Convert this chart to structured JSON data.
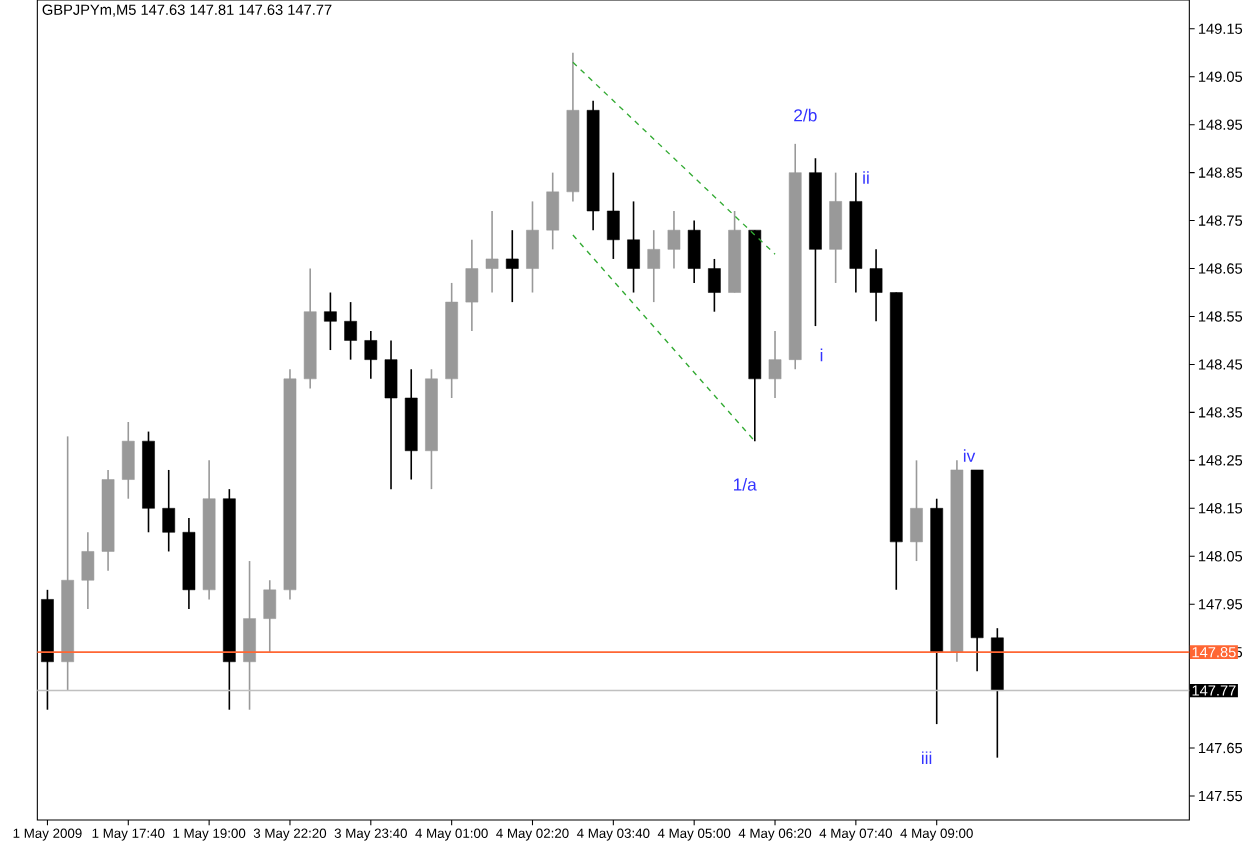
{
  "chart_data": {
    "type": "candlestick",
    "title": "GBPJPYm,M5  147.63 147.81 147.63 147.77",
    "categories": [
      "1 May 2009",
      null,
      null,
      null,
      "1 May 17:40",
      null,
      null,
      null,
      "1 May 19:00",
      null,
      null,
      null,
      "3 May 22:20",
      null,
      null,
      null,
      "3 May 23:40",
      null,
      null,
      null,
      "4 May 01:00",
      null,
      null,
      null,
      "4 May 02:20",
      null,
      null,
      null,
      "4 May 03:40",
      null,
      null,
      null,
      "4 May 05:00",
      null,
      null,
      null,
      "4 May 06:20",
      null,
      null,
      null,
      "4 May 07:40",
      null,
      null,
      null,
      "4 May 09:00",
      null,
      null,
      null,
      null,
      null,
      null,
      null,
      null,
      null,
      null,
      null,
      null
    ],
    "ohlc": [
      [
        147.96,
        147.98,
        147.73,
        147.83
      ],
      [
        147.83,
        148.3,
        147.77,
        148.0
      ],
      [
        148.0,
        148.1,
        147.94,
        148.06
      ],
      [
        148.06,
        148.23,
        148.02,
        148.21
      ],
      [
        148.21,
        148.33,
        148.17,
        148.29
      ],
      [
        148.29,
        148.31,
        148.1,
        148.15
      ],
      [
        148.15,
        148.23,
        148.06,
        148.1
      ],
      [
        148.1,
        148.13,
        147.94,
        147.98
      ],
      [
        147.98,
        148.25,
        147.96,
        148.17
      ],
      [
        148.17,
        148.19,
        147.73,
        147.83
      ],
      [
        147.83,
        148.04,
        147.73,
        147.92
      ],
      [
        147.92,
        148.0,
        147.85,
        147.98
      ],
      [
        147.98,
        148.44,
        147.96,
        148.42
      ],
      [
        148.42,
        148.65,
        148.4,
        148.56
      ],
      [
        148.56,
        148.6,
        148.48,
        148.54
      ],
      [
        148.54,
        148.58,
        148.46,
        148.5
      ],
      [
        148.5,
        148.52,
        148.42,
        148.46
      ],
      [
        148.46,
        148.5,
        148.19,
        148.38
      ],
      [
        148.38,
        148.44,
        148.21,
        148.27
      ],
      [
        148.27,
        148.44,
        148.19,
        148.42
      ],
      [
        148.42,
        148.62,
        148.38,
        148.58
      ],
      [
        148.58,
        148.71,
        148.52,
        148.65
      ],
      [
        148.65,
        148.77,
        148.6,
        148.67
      ],
      [
        148.67,
        148.73,
        148.58,
        148.65
      ],
      [
        148.65,
        148.79,
        148.6,
        148.73
      ],
      [
        148.73,
        148.85,
        148.69,
        148.81
      ],
      [
        148.81,
        149.1,
        148.79,
        148.98
      ],
      [
        148.98,
        149.0,
        148.73,
        148.77
      ],
      [
        148.77,
        148.85,
        148.67,
        148.71
      ],
      [
        148.71,
        148.79,
        148.6,
        148.65
      ],
      [
        148.65,
        148.73,
        148.58,
        148.69
      ],
      [
        148.69,
        148.77,
        148.65,
        148.73
      ],
      [
        148.73,
        148.75,
        148.62,
        148.65
      ],
      [
        148.65,
        148.67,
        148.56,
        148.6
      ],
      [
        148.6,
        148.77,
        148.6,
        148.73
      ],
      [
        148.73,
        148.73,
        148.29,
        148.42
      ],
      [
        148.42,
        148.52,
        148.38,
        148.46
      ],
      [
        148.46,
        148.91,
        148.44,
        148.85
      ],
      [
        148.85,
        148.88,
        148.53,
        148.69
      ],
      [
        148.69,
        148.85,
        148.62,
        148.79
      ],
      [
        148.79,
        148.85,
        148.6,
        148.65
      ],
      [
        148.65,
        148.69,
        148.54,
        148.6
      ],
      [
        148.6,
        148.6,
        147.98,
        148.08
      ],
      [
        148.08,
        148.25,
        148.04,
        148.15
      ],
      [
        148.15,
        148.17,
        147.7,
        147.85
      ],
      [
        147.85,
        148.25,
        147.83,
        148.23
      ],
      [
        148.23,
        148.23,
        147.81,
        147.88
      ],
      [
        147.88,
        147.9,
        147.63,
        147.77
      ],
      null,
      null,
      null,
      null,
      null,
      null,
      null,
      null,
      null
    ],
    "colors": [
      "#000000",
      "#999999",
      "#999999",
      "#999999",
      "#999999",
      "#000000",
      "#000000",
      "#000000",
      "#999999",
      "#000000",
      "#999999",
      "#999999",
      "#999999",
      "#999999",
      "#000000",
      "#000000",
      "#000000",
      "#000000",
      "#000000",
      "#999999",
      "#999999",
      "#999999",
      "#999999",
      "#000000",
      "#999999",
      "#999999",
      "#999999",
      "#000000",
      "#000000",
      "#000000",
      "#999999",
      "#999999",
      "#000000",
      "#000000",
      "#999999",
      "#000000",
      "#999999",
      "#999999",
      "#000000",
      "#999999",
      "#000000",
      "#000000",
      "#000000",
      "#999999",
      "#000000",
      "#999999",
      "#000000",
      "#000000",
      null,
      null,
      null,
      null,
      null,
      null,
      null,
      null,
      null
    ],
    "series": [
      {
        "type": "line",
        "color": "#33aa33",
        "line_style": "dashed",
        "values": [
          null,
          null,
          null,
          null,
          null,
          null,
          null,
          null,
          null,
          null,
          null,
          null,
          null,
          null,
          null,
          null,
          null,
          null,
          null,
          null,
          null,
          null,
          null,
          null,
          null,
          null,
          149.08,
          null,
          null,
          null,
          null,
          null,
          null,
          null,
          null,
          null,
          148.68,
          null,
          null,
          null,
          null,
          null,
          null,
          null,
          null,
          null,
          null,
          null,
          null,
          null,
          null,
          null,
          null,
          null,
          null,
          null,
          null
        ]
      },
      {
        "type": "line",
        "color": "#33aa33",
        "line_style": "dashed",
        "values": [
          null,
          null,
          null,
          null,
          null,
          null,
          null,
          null,
          null,
          null,
          null,
          null,
          null,
          null,
          null,
          null,
          null,
          null,
          null,
          null,
          null,
          null,
          null,
          null,
          null,
          null,
          148.72,
          null,
          null,
          null,
          null,
          null,
          null,
          null,
          null,
          148.29,
          null,
          null,
          null,
          null,
          null,
          null,
          null,
          null,
          null,
          null,
          null,
          null,
          null,
          null,
          null,
          null,
          null,
          null,
          null,
          null,
          null
        ]
      }
    ],
    "ylim": [
      147.5,
      149.21
    ],
    "yticks": [
      147.55,
      147.65,
      147.85,
      147.95,
      148.05,
      148.15,
      148.25,
      148.35,
      148.45,
      148.55,
      148.65,
      148.75,
      148.85,
      148.95,
      149.05,
      149.15
    ],
    "ref_lines": [
      {
        "axis": "y",
        "value": 147.85,
        "label": "147.85",
        "color": "#ff6633"
      },
      {
        "axis": "y",
        "value": 147.77,
        "label": "147.77",
        "color": "#c0c0c0"
      }
    ],
    "annotations": [
      "2/b",
      "ii",
      "i",
      "1/a",
      "iv",
      "iii"
    ]
  }
}
